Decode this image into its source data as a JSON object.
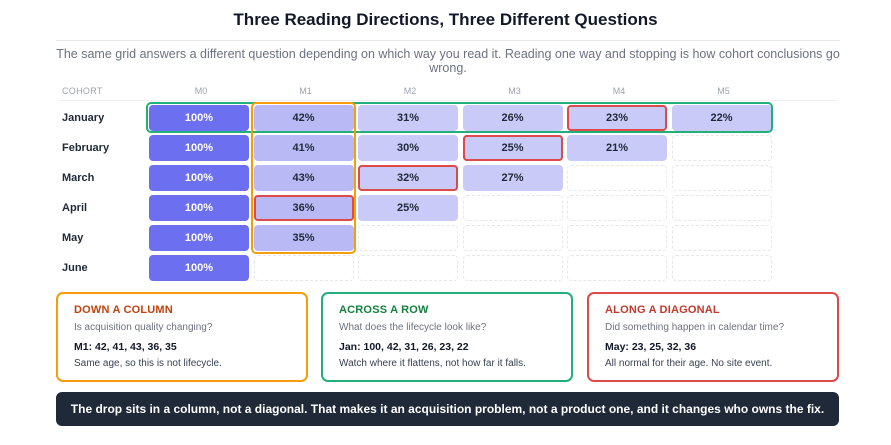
{
  "title": "Three Reading Directions, Three Different Questions",
  "subtitle": "The same grid answers a different question depending on which way you read it. Reading one way and stopping is how cohort conclusions go wrong.",
  "grid": {
    "cohort_header": "COHORT",
    "columns": [
      "M0",
      "M1",
      "M2",
      "M3",
      "M4",
      "M5"
    ],
    "rows": [
      {
        "label": "January",
        "values": [
          "100%",
          "42%",
          "31%",
          "26%",
          "23%",
          "22%"
        ]
      },
      {
        "label": "February",
        "values": [
          "100%",
          "41%",
          "30%",
          "25%",
          "21%"
        ]
      },
      {
        "label": "March",
        "values": [
          "100%",
          "43%",
          "32%",
          "27%"
        ]
      },
      {
        "label": "April",
        "values": [
          "100%",
          "36%",
          "25%"
        ]
      },
      {
        "label": "May",
        "values": [
          "100%",
          "35%"
        ]
      },
      {
        "label": "June",
        "values": [
          "100%"
        ]
      }
    ]
  },
  "cards": [
    {
      "heading": "DOWN A COLUMN",
      "question": "Is acquisition quality changing?",
      "values": "M1: 42, 41, 43, 36, 35",
      "note": "Same age, so this is not lifecycle."
    },
    {
      "heading": "ACROSS A ROW",
      "question": "What does the lifecycle look like?",
      "values": "Jan: 100, 42, 31, 26, 23, 22",
      "note": "Watch where it flattens, not how far it falls."
    },
    {
      "heading": "ALONG A DIAGONAL",
      "question": "Did something happen in calendar time?",
      "values": "May: 23, 25, 32, 36",
      "note": "All normal for their age. No site event."
    }
  ],
  "banner": "The drop sits in a column, not a diagonal. That makes it an acquisition problem, not a product one, and it changes who owns the fix.",
  "colors": {
    "m0": "#6c6ff0",
    "cell": "#c9caf7",
    "row": "#22b07a",
    "column": "#f59e0b",
    "diagonal": "#dc4a4a",
    "banner": "#1f2937"
  }
}
